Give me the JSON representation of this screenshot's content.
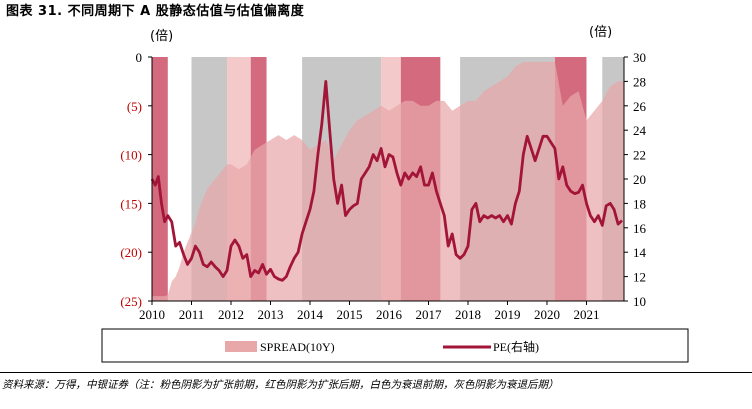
{
  "header": {
    "title": "图表 31. 不同周期下 A 股静态估值与估值偏离度"
  },
  "footer": {
    "source": "资料来源：万得，中银证券（注：粉色阴影为扩张前期，红色阴影为扩张后期，白色为衰退前期，灰色阴影为衰退后期）"
  },
  "axis_units": {
    "left": "(倍)",
    "right": "(倍)"
  },
  "colors": {
    "spread": "#e8a8aa",
    "pe": "#a31538",
    "expansion_early": "#f4c9c9",
    "expansion_late": "#d46a7e",
    "recession_late": "#c7c7c7",
    "left_tick": "#c00000"
  },
  "chart_data": {
    "type": "area",
    "left_axis": {
      "ylim": [
        -25,
        0
      ],
      "ticks": [
        0,
        -5,
        -10,
        -15,
        -20,
        -25
      ],
      "tick_labels": [
        "0",
        "(5)",
        "(10)",
        "(15)",
        "(20)",
        "(25)"
      ]
    },
    "right_axis": {
      "ylim": [
        10,
        30
      ],
      "ticks": [
        10,
        12,
        14,
        16,
        18,
        20,
        22,
        24,
        26,
        28,
        30
      ],
      "tick_labels": [
        "10",
        "12",
        "14",
        "16",
        "18",
        "20",
        "22",
        "24",
        "26",
        "28",
        "30"
      ]
    },
    "x_axis": {
      "xlim": [
        2010.0,
        2021.95
      ],
      "ticks": [
        2010,
        2011,
        2012,
        2013,
        2014,
        2015,
        2016,
        2017,
        2018,
        2019,
        2020,
        2021
      ],
      "tick_labels": [
        "2010",
        "2011",
        "2012",
        "2013",
        "2014",
        "2015",
        "2016",
        "2017",
        "2018",
        "2019",
        "2020",
        "2021"
      ]
    },
    "phases": [
      {
        "start": 2010.0,
        "end": 2010.4,
        "type": "expansion_late"
      },
      {
        "start": 2011.0,
        "end": 2011.9,
        "type": "recession_late"
      },
      {
        "start": 2011.9,
        "end": 2012.5,
        "type": "expansion_early"
      },
      {
        "start": 2012.5,
        "end": 2012.9,
        "type": "expansion_late"
      },
      {
        "start": 2013.8,
        "end": 2015.8,
        "type": "recession_late"
      },
      {
        "start": 2015.8,
        "end": 2016.3,
        "type": "expansion_early"
      },
      {
        "start": 2016.3,
        "end": 2017.3,
        "type": "expansion_late"
      },
      {
        "start": 2017.8,
        "end": 2020.2,
        "type": "recession_late"
      },
      {
        "start": 2020.2,
        "end": 2021.0,
        "type": "expansion_late"
      },
      {
        "start": 2021.4,
        "end": 2021.95,
        "type": "recession_late"
      }
    ],
    "series": [
      {
        "name": "SPREAD(10Y)",
        "axis": "left",
        "style": "area",
        "x": [
          2010.0,
          2010.1,
          2010.2,
          2010.3,
          2010.4,
          2010.5,
          2010.6,
          2010.7,
          2010.8,
          2010.9,
          2011.0,
          2011.1,
          2011.2,
          2011.3,
          2011.4,
          2011.5,
          2011.6,
          2011.7,
          2011.8,
          2011.9,
          2012.0,
          2012.2,
          2012.4,
          2012.6,
          2012.8,
          2013.0,
          2013.2,
          2013.4,
          2013.6,
          2013.8,
          2014.0,
          2014.2,
          2014.4,
          2014.6,
          2014.8,
          2015.0,
          2015.2,
          2015.4,
          2015.6,
          2015.8,
          2016.0,
          2016.2,
          2016.4,
          2016.6,
          2016.8,
          2017.0,
          2017.2,
          2017.4,
          2017.6,
          2017.8,
          2018.0,
          2018.2,
          2018.4,
          2018.6,
          2018.8,
          2019.0,
          2019.2,
          2019.4,
          2019.6,
          2019.8,
          2020.0,
          2020.2,
          2020.4,
          2020.6,
          2020.8,
          2021.0,
          2021.2,
          2021.4,
          2021.6,
          2021.8,
          2021.95
        ],
        "values": [
          -24.5,
          -24.5,
          -24.5,
          -24.5,
          -24.4,
          -23.0,
          -22.5,
          -21.5,
          -20.0,
          -19.0,
          -18.0,
          -17.0,
          -15.5,
          -14.5,
          -13.5,
          -13.0,
          -12.5,
          -12.0,
          -11.5,
          -11.0,
          -11.0,
          -11.5,
          -11.0,
          -9.5,
          -9.0,
          -8.5,
          -8.0,
          -8.5,
          -8.0,
          -8.5,
          -9.5,
          -9.0,
          -8.5,
          -10.5,
          -9.0,
          -7.5,
          -6.5,
          -6.0,
          -5.5,
          -5.0,
          -5.5,
          -5.0,
          -4.5,
          -4.5,
          -5.0,
          -5.0,
          -4.5,
          -4.5,
          -5.5,
          -5.0,
          -4.5,
          -4.5,
          -3.5,
          -3.0,
          -2.5,
          -2.0,
          -1.0,
          -0.5,
          -0.5,
          -0.5,
          -0.5,
          -0.5,
          -5.0,
          -4.0,
          -3.5,
          -6.5,
          -5.5,
          -4.5,
          -3.0,
          -2.5,
          -2.5
        ]
      },
      {
        "name": "PE(右轴)",
        "axis": "right",
        "style": "line",
        "x": [
          2010.0,
          2010.08,
          2010.16,
          2010.24,
          2010.32,
          2010.4,
          2010.5,
          2010.6,
          2010.7,
          2010.8,
          2010.9,
          2011.0,
          2011.1,
          2011.2,
          2011.3,
          2011.4,
          2011.5,
          2011.6,
          2011.7,
          2011.8,
          2011.9,
          2012.0,
          2012.1,
          2012.2,
          2012.3,
          2012.4,
          2012.5,
          2012.6,
          2012.7,
          2012.8,
          2012.9,
          2013.0,
          2013.1,
          2013.2,
          2013.3,
          2013.4,
          2013.5,
          2013.6,
          2013.7,
          2013.8,
          2013.9,
          2014.0,
          2014.1,
          2014.2,
          2014.3,
          2014.4,
          2014.5,
          2014.6,
          2014.7,
          2014.8,
          2014.9,
          2015.0,
          2015.1,
          2015.2,
          2015.3,
          2015.4,
          2015.5,
          2015.6,
          2015.7,
          2015.8,
          2015.9,
          2016.0,
          2016.1,
          2016.2,
          2016.3,
          2016.4,
          2016.5,
          2016.6,
          2016.7,
          2016.8,
          2016.9,
          2017.0,
          2017.1,
          2017.2,
          2017.3,
          2017.4,
          2017.5,
          2017.6,
          2017.7,
          2017.8,
          2017.9,
          2018.0,
          2018.1,
          2018.2,
          2018.3,
          2018.4,
          2018.5,
          2018.6,
          2018.7,
          2018.8,
          2018.9,
          2019.0,
          2019.1,
          2019.2,
          2019.3,
          2019.4,
          2019.5,
          2019.6,
          2019.7,
          2019.8,
          2019.9,
          2020.0,
          2020.1,
          2020.2,
          2020.3,
          2020.4,
          2020.5,
          2020.6,
          2020.7,
          2020.8,
          2020.9,
          2021.0,
          2021.1,
          2021.2,
          2021.3,
          2021.4,
          2021.5,
          2021.6,
          2021.7,
          2021.8,
          2021.9
        ],
        "values": [
          20.0,
          19.5,
          20.2,
          18.0,
          16.5,
          17.0,
          16.5,
          14.5,
          14.8,
          13.8,
          13.0,
          13.5,
          14.5,
          14.0,
          13.0,
          12.8,
          13.2,
          12.8,
          12.5,
          12.0,
          12.5,
          14.5,
          15.0,
          14.5,
          13.5,
          13.8,
          12.0,
          12.5,
          12.3,
          13.0,
          12.2,
          12.6,
          12.0,
          11.8,
          11.7,
          12.0,
          12.8,
          13.5,
          14.0,
          15.5,
          16.5,
          17.5,
          19.0,
          22.0,
          24.5,
          28.0,
          24.0,
          20.0,
          18.0,
          19.5,
          17.0,
          17.5,
          17.8,
          18.0,
          20.0,
          20.5,
          21.0,
          22.0,
          21.5,
          22.5,
          21.0,
          22.0,
          21.8,
          20.5,
          19.5,
          20.5,
          20.0,
          20.5,
          20.2,
          21.0,
          19.5,
          19.5,
          20.5,
          19.0,
          18.0,
          17.0,
          14.5,
          15.5,
          13.8,
          13.5,
          13.8,
          14.5,
          17.5,
          18.0,
          16.5,
          17.0,
          16.8,
          17.0,
          16.8,
          17.0,
          16.5,
          17.0,
          16.3,
          18.0,
          19.0,
          22.0,
          23.5,
          22.5,
          21.5,
          22.5,
          23.5,
          23.5,
          23.0,
          22.5,
          20.0,
          21.0,
          19.5,
          19.0,
          18.8,
          18.9,
          19.5,
          18.0,
          17.0,
          16.5,
          17.0,
          16.2,
          17.8,
          18.0,
          17.5,
          16.3,
          16.6
        ]
      }
    ],
    "legend": {
      "placement": "bottom",
      "entries": [
        "SPREAD(10Y)",
        "PE(右轴)"
      ]
    }
  }
}
